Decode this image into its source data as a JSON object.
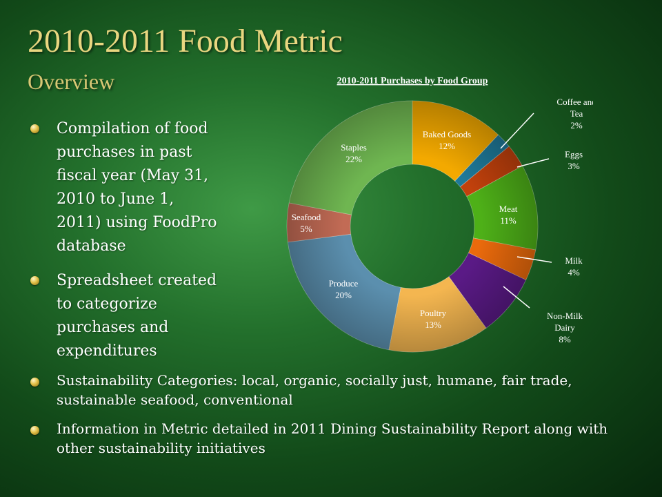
{
  "slide": {
    "title": "2010-2011 Food Metric",
    "subtitle": "Overview",
    "bullets": [
      "Compilation of food purchases in past fiscal year (May 31, 2010 to June 1, 2011) using FoodPro database",
      "Spreadsheet created to categorize purchases and expenditures",
      "Sustainability Categories: local, organic, socially just, humane, fair trade, sustainable seafood, conventional",
      "Information in Metric detailed in 2011 Dining Sustainability Report along with other sustainability initiatives"
    ]
  },
  "chart_data": {
    "type": "pie",
    "title": "2010-2011 Purchases by Food Group",
    "donut": true,
    "categories": [
      "Baked Goods",
      "Coffee and Tea",
      "Eggs",
      "Meat",
      "Milk",
      "Non-Milk Dairy",
      "Poultry",
      "Produce",
      "Seafood",
      "Staples"
    ],
    "values": [
      12,
      2,
      3,
      11,
      4,
      8,
      13,
      20,
      5,
      22
    ],
    "value_labels": [
      "12%",
      "2%",
      "3%",
      "11%",
      "4%",
      "8%",
      "13%",
      "20%",
      "5%",
      "22%"
    ],
    "colors": [
      "#f3a900",
      "#1f7a9a",
      "#c2410c",
      "#4eb018",
      "#ea6a0c",
      "#5a1a86",
      "#f4b650",
      "#5b8fae",
      "#c26b55",
      "#6fb651"
    ]
  }
}
